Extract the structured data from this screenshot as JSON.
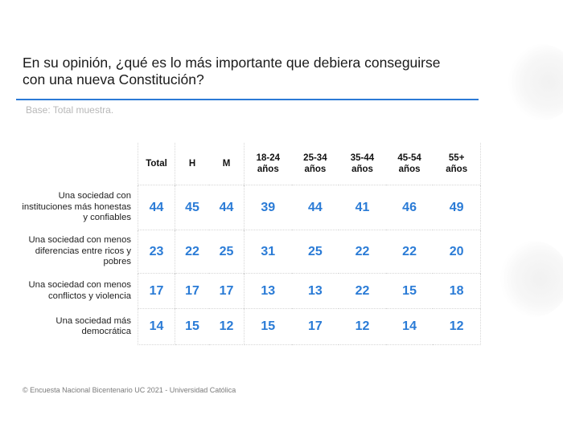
{
  "title": {
    "line1": "En su opinión, ¿qué es lo más importante que debiera conseguirse",
    "line2": "con una nueva Constitución?"
  },
  "base_note": "Base: Total muestra.",
  "accent_color": "#2a7bd6",
  "table": {
    "columns": [
      {
        "line1": "Total",
        "line2": ""
      },
      {
        "line1": "H",
        "line2": ""
      },
      {
        "line1": "M",
        "line2": ""
      },
      {
        "line1": "18-24",
        "line2": "años"
      },
      {
        "line1": "25-34",
        "line2": "años"
      },
      {
        "line1": "35-44",
        "line2": "años"
      },
      {
        "line1": "45-54",
        "line2": "años"
      },
      {
        "line1": "55+",
        "line2": "años"
      }
    ],
    "rows": [
      {
        "label_lines": [
          "Una sociedad con",
          "instituciones más honestas",
          "y confiables"
        ],
        "values": [
          "44",
          "45",
          "44",
          "39",
          "44",
          "41",
          "46",
          "49"
        ]
      },
      {
        "label_lines": [
          "Una sociedad con menos",
          "diferencias entre ricos y",
          "pobres"
        ],
        "values": [
          "23",
          "22",
          "25",
          "31",
          "25",
          "22",
          "22",
          "20"
        ]
      },
      {
        "label_lines": [
          "Una sociedad con menos",
          "conflictos y violencia"
        ],
        "values": [
          "17",
          "17",
          "17",
          "13",
          "13",
          "22",
          "15",
          "18"
        ]
      },
      {
        "label_lines": [
          "Una sociedad más",
          "democrática"
        ],
        "values": [
          "14",
          "15",
          "12",
          "15",
          "17",
          "12",
          "14",
          "12"
        ]
      }
    ]
  },
  "footer": "© Encuesta Nacional Bicentenario UC 2021 - Universidad Católica"
}
